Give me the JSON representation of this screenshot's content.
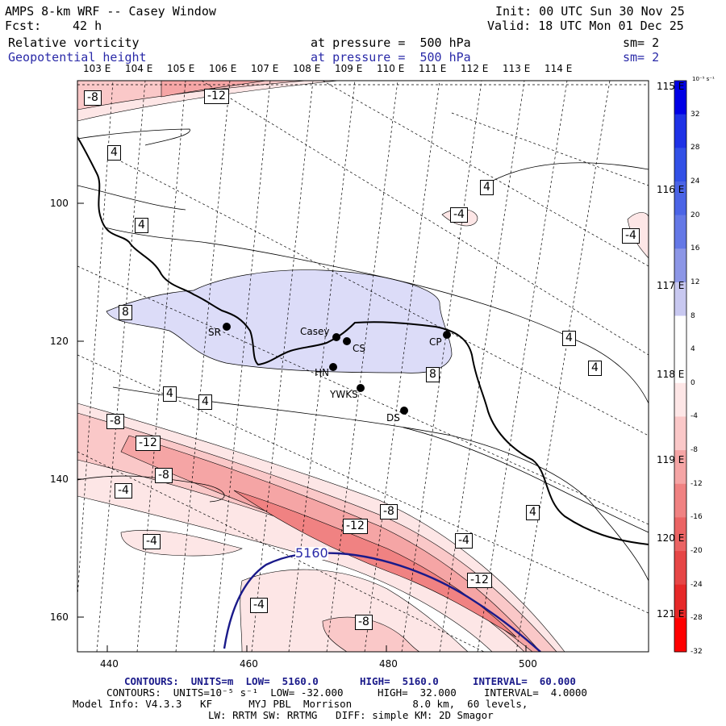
{
  "header": {
    "model_title": "AMPS 8-km WRF -- Casey Window",
    "fcst_label": "Fcst:",
    "fcst_value": "42 h",
    "init": "Init: 00 UTC Sun 30 Nov 25",
    "valid": "Valid: 18 UTC Mon 01 Dec 25",
    "field1": "Relative vorticity",
    "field1_level": "at pressure =  500 hPa",
    "field1_sm": "sm= 2",
    "field2": "Geopotential height",
    "field2_level": "at pressure =  500 hPa",
    "field2_sm": "sm= 2"
  },
  "top_longitudes": [
    "103 E",
    "104 E",
    "105 E",
    "106 E",
    "107 E",
    "108 E",
    "109 E",
    "110 E",
    "111 E",
    "112 E",
    "113 E",
    "114 E"
  ],
  "right_longitudes": [
    "115 E",
    "116 E",
    "117 E",
    "118 E",
    "119 E",
    "120 E",
    "121 E"
  ],
  "y_ticks": [
    "100",
    "120",
    "140",
    "160"
  ],
  "x_ticks": [
    "440",
    "460",
    "480",
    "500"
  ],
  "colorbar": {
    "unit_label": "10⁻⁵ s⁻¹",
    "labels": [
      "32",
      "28",
      "24",
      "20",
      "16",
      "12",
      "8",
      "4",
      "0",
      "-4",
      "-8",
      "-12",
      "-16",
      "-20",
      "-24",
      "-28",
      "-32"
    ],
    "colors": [
      "#0000e6",
      "#1e32e6",
      "#3250e6",
      "#4b64e6",
      "#6478e6",
      "#8c96e6",
      "#c8c8f0",
      "#ffffff",
      "#ffffff",
      "#fde6e6",
      "#fac8c8",
      "#f5a5a5",
      "#f08282",
      "#eb6464",
      "#e64646",
      "#e62828",
      "#ff0000"
    ]
  },
  "stations": [
    {
      "code": "SR"
    },
    {
      "code": "Casey"
    },
    {
      "code": "CS"
    },
    {
      "code": "HN"
    },
    {
      "code": "CP"
    },
    {
      "code": "YWKS"
    },
    {
      "code": "DS"
    }
  ],
  "vorticity_labels": [
    "-8",
    "-12",
    "4",
    "4",
    "4",
    "-4",
    "-4",
    "8",
    "8",
    "4",
    "4",
    "4",
    "4",
    "-8",
    "-12",
    "-8",
    "-4",
    "-8",
    "-12",
    "-4",
    "-4",
    "4",
    "-12",
    "-4",
    "-8"
  ],
  "height_labels": [
    "5160"
  ],
  "footer": {
    "line1_units": "CONTOURS:  UNITS=m  LOW=  5160.0",
    "line1_high": "HIGH=  5160.0",
    "line1_interval": "INTERVAL=  60.000",
    "line2_units": "CONTOURS:  UNITS=10⁻⁵ s⁻¹  LOW= -32.000",
    "line2_high": "HIGH=  32.000",
    "line2_interval": "INTERVAL=  4.0000",
    "line3": "Model Info: V4.3.3   KF      MYJ PBL  Morrison          8.0 km,  60 levels,",
    "line4": "LW: RRTM SW: RRTMG   DIFF: simple KM: 2D Smagor"
  }
}
